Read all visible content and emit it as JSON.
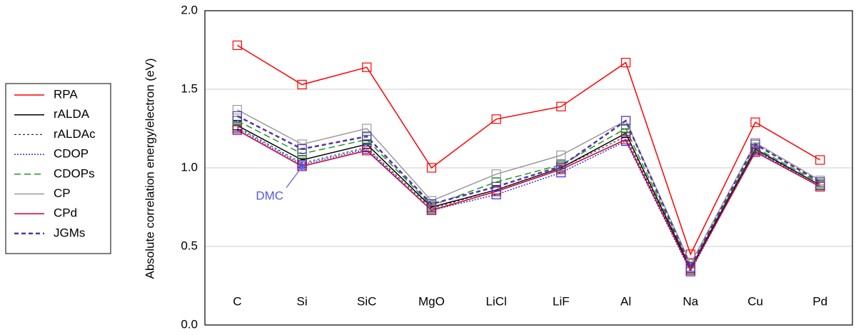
{
  "chart_data": {
    "type": "line",
    "y_label": "Absolute correlation energy/electron (eV)",
    "categories": [
      "C",
      "Si",
      "SiC",
      "MgO",
      "LiCl",
      "LiF",
      "Al",
      "Na",
      "Cu",
      "Pd"
    ],
    "series": [
      {
        "name": "RPA",
        "color": "#ff0000",
        "dash": "none",
        "width": 1.5,
        "values": [
          1.78,
          1.53,
          1.64,
          1.0,
          1.31,
          1.39,
          1.67,
          0.45,
          1.29,
          1.05
        ]
      },
      {
        "name": "rALDA",
        "color": "#000000",
        "dash": "none",
        "width": 1.5,
        "values": [
          1.27,
          1.05,
          1.15,
          0.75,
          0.86,
          1.0,
          1.22,
          0.36,
          1.12,
          0.89
        ]
      },
      {
        "name": "rALDAc",
        "color": "#333333",
        "dash": "3,3",
        "width": 1.2,
        "values": [
          1.26,
          1.03,
          1.13,
          0.74,
          0.86,
          1.0,
          1.2,
          0.35,
          1.11,
          0.89
        ]
      },
      {
        "name": "CDOP",
        "color": "#2233ee",
        "dash": "2,2",
        "width": 1.5,
        "values": [
          1.25,
          1.02,
          1.12,
          0.73,
          0.83,
          0.97,
          1.17,
          0.34,
          1.11,
          0.88
        ]
      },
      {
        "name": "CDOPs",
        "color": "#229922",
        "dash": "9,5",
        "width": 1.5,
        "values": [
          1.3,
          1.09,
          1.18,
          0.76,
          0.91,
          1.02,
          1.25,
          0.37,
          1.13,
          0.9
        ]
      },
      {
        "name": "CP",
        "color": "#999999",
        "dash": "none",
        "width": 1.5,
        "values": [
          1.37,
          1.15,
          1.25,
          0.79,
          0.96,
          1.08,
          1.3,
          0.39,
          1.16,
          0.92
        ]
      },
      {
        "name": "CPd",
        "color": "#cc0033",
        "dash": "none",
        "width": 1.5,
        "values": [
          1.24,
          1.01,
          1.11,
          0.73,
          0.85,
          0.99,
          1.18,
          0.35,
          1.1,
          0.88
        ]
      },
      {
        "name": "JGMs",
        "color": "#5533aa",
        "dash": "6,4",
        "width": 2.5,
        "values": [
          1.33,
          1.12,
          1.2,
          0.77,
          0.88,
          1.01,
          1.3,
          0.37,
          1.15,
          0.91
        ]
      }
    ],
    "reference_points": [
      {
        "name": "DMC",
        "category": "Si",
        "value": 1.01,
        "color": "#5555ee"
      }
    ],
    "ylim": [
      0,
      2
    ],
    "yticks": [
      {
        "value": 0,
        "label": "0.0"
      },
      {
        "value": 0.5,
        "label": "0.5"
      },
      {
        "value": 1,
        "label": "1.0"
      },
      {
        "value": 1.5,
        "label": "1.5"
      },
      {
        "value": 2,
        "label": "2.0"
      }
    ],
    "grid": true,
    "legend": "left"
  }
}
